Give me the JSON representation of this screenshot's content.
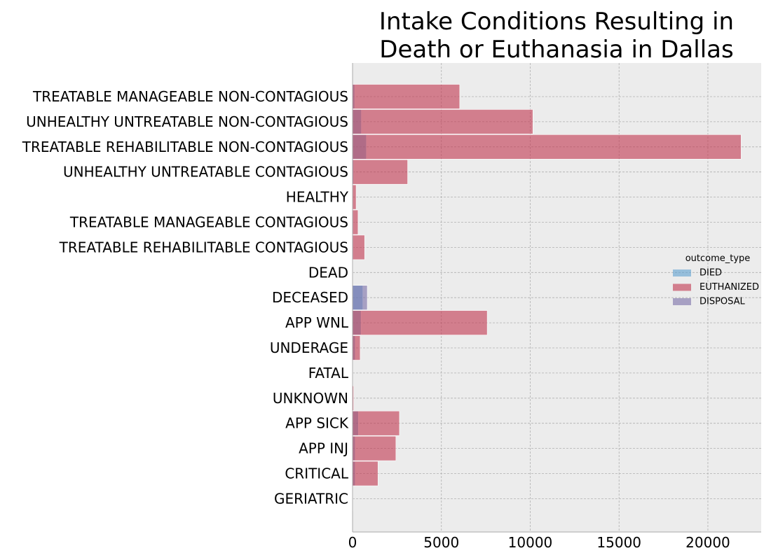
{
  "chart_data": {
    "type": "bar",
    "orientation": "horizontal",
    "stacking": "overlay",
    "title": "Intake Conditions Resulting in Death or Euthanasia in Dallas",
    "title_lines": [
      "Intake Conditions Resulting in",
      "Death or Euthanasia in Dallas"
    ],
    "xlabel": "",
    "ylabel": "",
    "xlim": [
      0,
      23000
    ],
    "x_ticks": [
      0,
      5000,
      10000,
      15000,
      20000
    ],
    "x_tick_labels": [
      "0",
      "5000",
      "10000",
      "15000",
      "20000"
    ],
    "grid": true,
    "legend_position": "center-right",
    "legend_title": "outcome_type",
    "categories": [
      "TREATABLE MANAGEABLE NON-CONTAGIOUS",
      "UNHEALTHY UNTREATABLE NON-CONTAGIOUS",
      "TREATABLE REHABILITABLE NON-CONTAGIOUS",
      "UNHEALTHY UNTREATABLE CONTAGIOUS",
      "HEALTHY",
      "TREATABLE MANAGEABLE CONTAGIOUS",
      "TREATABLE REHABILITABLE CONTAGIOUS",
      "DEAD",
      "DECEASED",
      "APP WNL",
      "UNDERAGE",
      "FATAL",
      "UNKNOWN",
      "APP SICK",
      "APP INJ",
      "CRITICAL",
      "GERIATRIC"
    ],
    "series": [
      {
        "name": "DIED",
        "color": "#5da0d0",
        "values": [
          120,
          500,
          780,
          60,
          20,
          40,
          40,
          5,
          580,
          480,
          150,
          5,
          10,
          330,
          150,
          150,
          5
        ]
      },
      {
        "name": "EUTHANIZED",
        "color": "#c2364e",
        "values": [
          6030,
          10150,
          21870,
          3100,
          200,
          310,
          680,
          0,
          0,
          7580,
          430,
          0,
          60,
          2640,
          2440,
          1430,
          0
        ]
      },
      {
        "name": "DISPOSAL",
        "color": "#7a6ea8",
        "values": [
          0,
          0,
          0,
          0,
          0,
          0,
          0,
          0,
          830,
          0,
          0,
          0,
          0,
          0,
          0,
          0,
          0
        ]
      }
    ]
  }
}
